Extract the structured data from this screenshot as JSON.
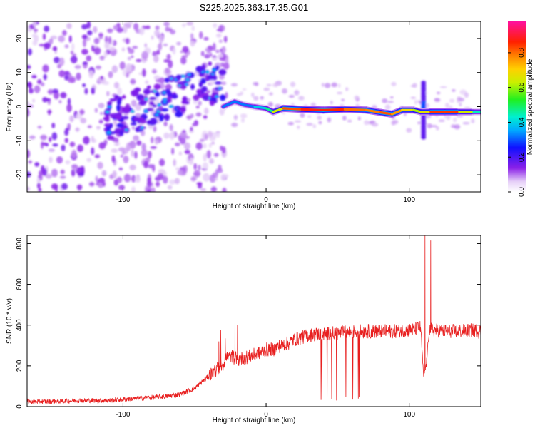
{
  "title": "S225.2025.363.17.35.G01",
  "colors": {
    "snr_line": "#e82020",
    "axis": "#000000",
    "background": "#ffffff"
  },
  "colorbar": {
    "label": "Normalized spectral amplitude",
    "range": [
      0,
      1
    ],
    "ticks": [
      {
        "value": 0.0,
        "label": "0.0"
      },
      {
        "value": 0.2,
        "label": "0.2"
      },
      {
        "value": 0.4,
        "label": "0.4"
      },
      {
        "value": 0.6,
        "label": "0.6"
      },
      {
        "value": 0.8,
        "label": "0.8"
      }
    ],
    "colormap": "rainbow: white -> violet -> blue -> cyan -> green -> yellow -> orange -> red -> magenta"
  },
  "chart_data": [
    {
      "type": "heatmap",
      "xlabel": "Height of straight line (km)",
      "ylabel": "Frequency (Hz)",
      "xlim": [
        -167,
        150
      ],
      "ylim": [
        -25,
        25
      ],
      "xticks": [
        {
          "value": -100,
          "label": "-100"
        },
        {
          "value": 0,
          "label": "0"
        },
        {
          "value": 100,
          "label": "100"
        }
      ],
      "yticks": [
        {
          "value": -20,
          "label": "-20"
        },
        {
          "value": -10,
          "label": "-10"
        },
        {
          "value": 0,
          "label": "0"
        },
        {
          "value": 10,
          "label": "10"
        },
        {
          "value": 20,
          "label": "20"
        }
      ],
      "ridge": [
        {
          "x": -30,
          "freq": 0.0,
          "amp": 0.3
        },
        {
          "x": -22,
          "freq": 1.5,
          "amp": 0.35
        },
        {
          "x": -15,
          "freq": 0.5,
          "amp": 0.3
        },
        {
          "x": -8,
          "freq": 0.0,
          "amp": 0.35
        },
        {
          "x": 0,
          "freq": -0.5,
          "amp": 0.45
        },
        {
          "x": 5,
          "freq": -1.5,
          "amp": 0.5
        },
        {
          "x": 12,
          "freq": -0.5,
          "amp": 0.8
        },
        {
          "x": 25,
          "freq": -0.8,
          "amp": 0.88
        },
        {
          "x": 40,
          "freq": -1.0,
          "amp": 0.9
        },
        {
          "x": 55,
          "freq": -0.8,
          "amp": 0.85
        },
        {
          "x": 70,
          "freq": -1.0,
          "amp": 0.78
        },
        {
          "x": 80,
          "freq": -1.7,
          "amp": 0.82
        },
        {
          "x": 88,
          "freq": -2.2,
          "amp": 0.85
        },
        {
          "x": 95,
          "freq": -1.0,
          "amp": 0.7
        },
        {
          "x": 103,
          "freq": -1.0,
          "amp": 0.7
        },
        {
          "x": 108,
          "freq": -1.5,
          "amp": 0.55
        },
        {
          "x": 115,
          "freq": -1.5,
          "amp": 0.8
        },
        {
          "x": 125,
          "freq": -1.5,
          "amp": 0.92
        },
        {
          "x": 135,
          "freq": -1.5,
          "amp": 0.8
        },
        {
          "x": 145,
          "freq": -1.5,
          "amp": 0.5
        },
        {
          "x": 150,
          "freq": -1.5,
          "amp": 0.4
        }
      ]
    },
    {
      "type": "line",
      "xlabel": "Height of straight line (km)",
      "ylabel": "SNR (10 * v/v)",
      "xlim": [
        -167,
        150
      ],
      "ylim": [
        0,
        840
      ],
      "xticks": [
        {
          "value": -100,
          "label": "-100"
        },
        {
          "value": 0,
          "label": "0"
        },
        {
          "value": 100,
          "label": "100"
        }
      ],
      "yticks": [
        {
          "value": 0,
          "label": "0"
        },
        {
          "value": 200,
          "label": "200"
        },
        {
          "value": 400,
          "label": "400"
        },
        {
          "value": 600,
          "label": "600"
        },
        {
          "value": 800,
          "label": "800"
        }
      ],
      "series": [
        {
          "x": [
            -167,
            -150,
            -130,
            -110,
            -100,
            -90,
            -80,
            -70,
            -60,
            -50,
            -45,
            -40,
            -35,
            -30,
            -28,
            -25,
            -22,
            -20,
            -15,
            -10,
            -5,
            0,
            5,
            10,
            15,
            20,
            25,
            30,
            35,
            40,
            45,
            50,
            55,
            60,
            65,
            70,
            75,
            80,
            85,
            90,
            95,
            100,
            105,
            108,
            110,
            112,
            114,
            118,
            125,
            135,
            145,
            150
          ],
          "y": [
            25,
            25,
            30,
            30,
            35,
            40,
            45,
            50,
            60,
            90,
            120,
            150,
            180,
            210,
            240,
            250,
            240,
            230,
            240,
            250,
            260,
            280,
            280,
            300,
            310,
            330,
            340,
            350,
            355,
            355,
            360,
            360,
            365,
            365,
            370,
            370,
            370,
            370,
            370,
            370,
            375,
            375,
            380,
            390,
            150,
            210,
            380,
            375,
            370,
            370,
            375,
            370
          ]
        }
      ],
      "spikes": [
        {
          "x": -33,
          "y": 320
        },
        {
          "x": -20,
          "y": 400
        },
        {
          "x": 111,
          "y": 838
        },
        {
          "x": 115,
          "y": 815
        }
      ],
      "dropouts_x_range": [
        34,
        73
      ]
    }
  ]
}
